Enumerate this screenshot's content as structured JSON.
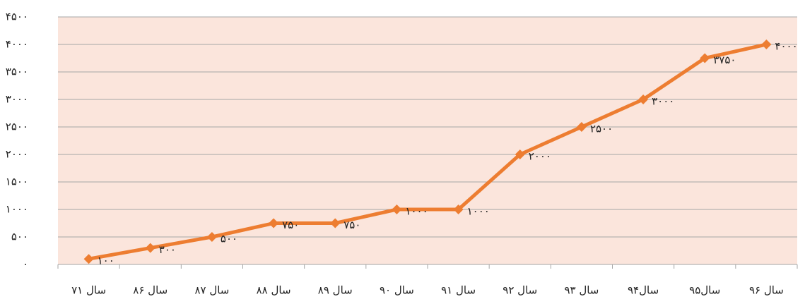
{
  "chart_data": {
    "type": "line",
    "categories": [
      "سال ۷۱",
      "سال ۸۶",
      "سال ۸۷",
      "سال ۸۸",
      "سال ۸۹",
      "سال ۹۰",
      "سال ۹۱",
      "سال ۹۲",
      "سال ۹۳",
      "سال۹۴",
      "سال۹۵",
      "سال ۹۶"
    ],
    "series": [
      {
        "color": "#ed7d31",
        "values": [
          100,
          300,
          500,
          750,
          750,
          1000,
          1000,
          2000,
          2500,
          3000,
          3750,
          4000
        ],
        "value_labels": [
          "۱۰۰",
          "۳۰۰",
          "۵۰۰",
          "۷۵۰",
          "۷۵۰",
          "۱۰۰۰",
          "۱۰۰۰",
          "۲۰۰۰",
          "۲۵۰۰",
          "۳۰۰۰",
          "۳۷۵۰",
          "۴۰۰۰"
        ]
      }
    ],
    "ylim": [
      0,
      4500
    ],
    "yticks": [
      {
        "value": 0,
        "label": "۰"
      },
      {
        "value": 500,
        "label": "۵۰۰"
      },
      {
        "value": 1000,
        "label": "۱۰۰۰"
      },
      {
        "value": 1500,
        "label": "۱۵۰۰"
      },
      {
        "value": 2000,
        "label": "۲۰۰۰"
      },
      {
        "value": 2500,
        "label": "۲۵۰۰"
      },
      {
        "value": 3000,
        "label": "۳۰۰۰"
      },
      {
        "value": 3500,
        "label": "۳۵۰۰"
      },
      {
        "value": 4000,
        "label": "۴۰۰۰"
      },
      {
        "value": 4500,
        "label": "۴۵۰۰"
      }
    ],
    "grid": true
  }
}
